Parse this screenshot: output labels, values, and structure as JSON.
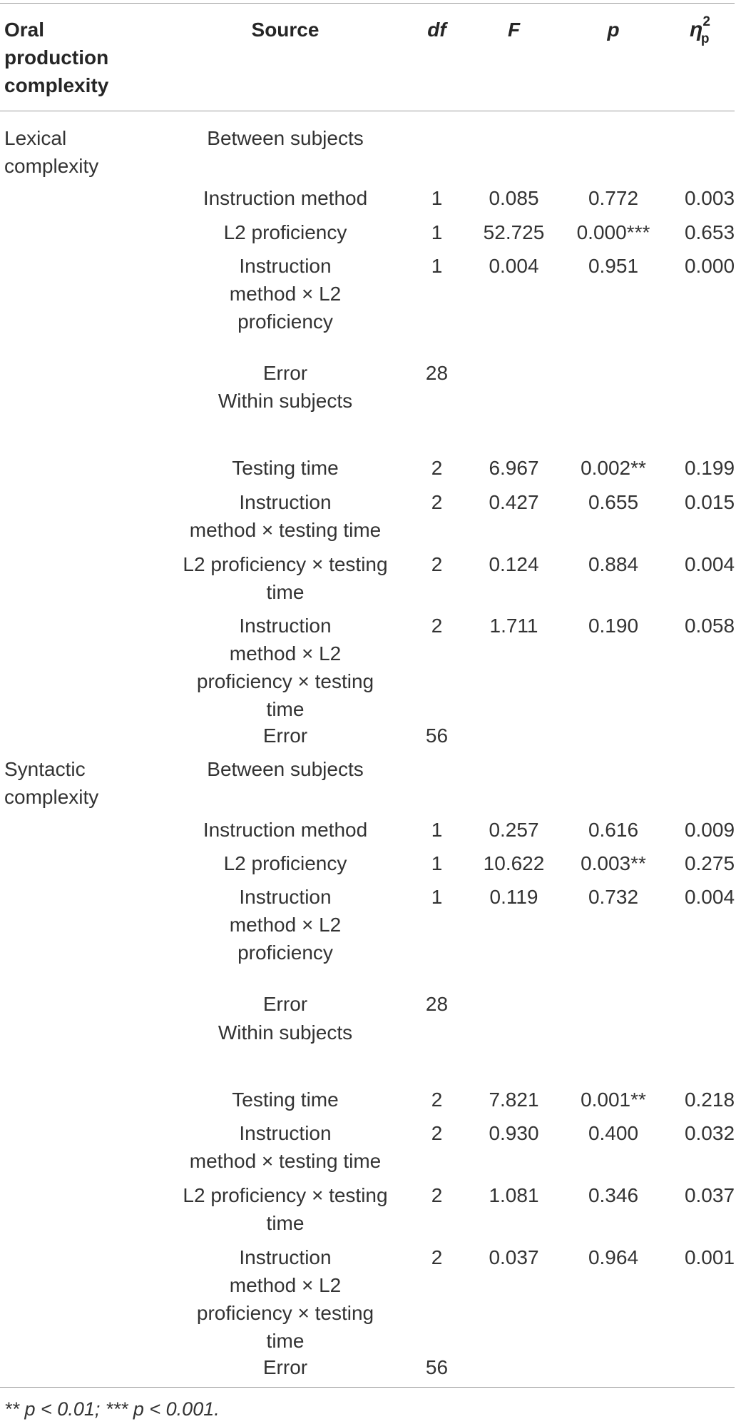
{
  "header": {
    "oral": [
      "Oral",
      "production",
      "complexity"
    ],
    "source": "Source",
    "df": "df",
    "F": "F",
    "p": "p",
    "eta_symbol": "η",
    "eta_sup": "2",
    "eta_sub": "p"
  },
  "sections": [
    {
      "group": [
        "Lexical",
        "complexity"
      ],
      "between_label": "Between subjects",
      "between_rows": [
        {
          "source": [
            "Instruction method"
          ],
          "df": "1",
          "F": "0.085",
          "p": "0.772",
          "eta": "0.003"
        },
        {
          "source": [
            "L2 proficiency"
          ],
          "df": "1",
          "F": "52.725",
          "p": "0.000***",
          "eta": "0.653"
        },
        {
          "source": [
            "Instruction",
            "method × L2",
            "proficiency"
          ],
          "df": "1",
          "F": "0.004",
          "p": "0.951",
          "eta": "0.000"
        },
        {
          "source": [
            "Error"
          ],
          "df": "28",
          "F": "",
          "p": "",
          "eta": ""
        }
      ],
      "within_label": "Within subjects",
      "within_rows": [
        {
          "source": [
            "Testing time"
          ],
          "df": "2",
          "F": "6.967",
          "p": "0.002**",
          "eta": "0.199"
        },
        {
          "source": [
            "Instruction",
            "method × testing time"
          ],
          "df": "2",
          "F": "0.427",
          "p": "0.655",
          "eta": "0.015"
        },
        {
          "source": [
            "L2 proficiency × testing",
            "time"
          ],
          "df": "2",
          "F": "0.124",
          "p": "0.884",
          "eta": "0.004"
        },
        {
          "source": [
            "Instruction",
            "method × L2",
            "proficiency × testing",
            "time"
          ],
          "df": "2",
          "F": "1.711",
          "p": "0.190",
          "eta": "0.058"
        },
        {
          "source": [
            "Error"
          ],
          "df": "56",
          "F": "",
          "p": "",
          "eta": ""
        }
      ]
    },
    {
      "group": [
        "Syntactic",
        "complexity"
      ],
      "between_label": "Between subjects",
      "between_rows": [
        {
          "source": [
            "Instruction method"
          ],
          "df": "1",
          "F": "0.257",
          "p": "0.616",
          "eta": "0.009"
        },
        {
          "source": [
            "L2 proficiency"
          ],
          "df": "1",
          "F": "10.622",
          "p": "0.003**",
          "eta": "0.275"
        },
        {
          "source": [
            "Instruction",
            "method × L2",
            "proficiency"
          ],
          "df": "1",
          "F": "0.119",
          "p": "0.732",
          "eta": "0.004"
        },
        {
          "source": [
            "Error"
          ],
          "df": "28",
          "F": "",
          "p": "",
          "eta": ""
        }
      ],
      "within_label": "Within subjects",
      "within_rows": [
        {
          "source": [
            "Testing time"
          ],
          "df": "2",
          "F": "7.821",
          "p": "0.001**",
          "eta": "0.218"
        },
        {
          "source": [
            "Instruction",
            "method × testing time"
          ],
          "df": "2",
          "F": "0.930",
          "p": "0.400",
          "eta": "0.032"
        },
        {
          "source": [
            "L2 proficiency × testing",
            "time"
          ],
          "df": "2",
          "F": "1.081",
          "p": "0.346",
          "eta": "0.037"
        },
        {
          "source": [
            "Instruction",
            "method × L2",
            "proficiency × testing",
            "time"
          ],
          "df": "2",
          "F": "0.037",
          "p": "0.964",
          "eta": "0.001"
        },
        {
          "source": [
            "Error"
          ],
          "df": "56",
          "F": "",
          "p": "",
          "eta": ""
        }
      ]
    }
  ],
  "footnote": "** p < 0.01; *** p < 0.001."
}
